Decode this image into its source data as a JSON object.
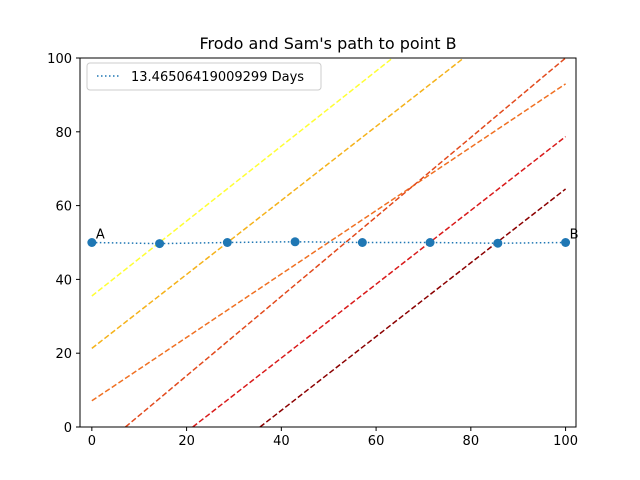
{
  "chart_data": {
    "type": "line",
    "title": "Frodo and Sam's path to point B",
    "xlabel": "",
    "ylabel": "",
    "xlim": [
      -2.5,
      102.2
    ],
    "ylim": [
      0,
      100
    ],
    "xticks": [
      0,
      20,
      40,
      60,
      80,
      100
    ],
    "yticks": [
      0,
      20,
      40,
      60,
      80,
      100
    ],
    "grid": false,
    "legend_position": "upper-left",
    "contours": [
      {
        "color": "#ffff33",
        "style": "dashed",
        "x": [
          0,
          63.5
        ],
        "y": [
          35.5,
          100
        ]
      },
      {
        "color": "#f5b21a",
        "style": "dashed",
        "x": [
          0,
          78.5
        ],
        "y": [
          21.3,
          100
        ]
      },
      {
        "color": "#f07022",
        "style": "dashed",
        "x": [
          0,
          100
        ],
        "y": [
          7.1,
          93
        ]
      },
      {
        "color": "#e24a1d",
        "style": "dashed",
        "x": [
          7.1,
          100
        ],
        "y": [
          0,
          100
        ]
      },
      {
        "color": "#d91a1a",
        "style": "dashed",
        "x": [
          21.3,
          100
        ],
        "y": [
          0,
          78.7
        ]
      },
      {
        "color": "#8b0000",
        "style": "dashed",
        "x": [
          35.5,
          100
        ],
        "y": [
          0,
          64.5
        ]
      }
    ],
    "path_series": {
      "name": "13.46506419009299 Days",
      "color": "#1f77b4",
      "style": "dotted",
      "x": [
        0,
        14.3,
        28.6,
        42.9,
        57.1,
        71.4,
        85.7,
        100
      ],
      "y": [
        50,
        49.7,
        50,
        50.2,
        50,
        50,
        49.8,
        50
      ]
    },
    "point_labels": [
      {
        "text": "A",
        "x": 0,
        "y": 50
      },
      {
        "text": "B",
        "x": 100,
        "y": 50
      }
    ]
  }
}
